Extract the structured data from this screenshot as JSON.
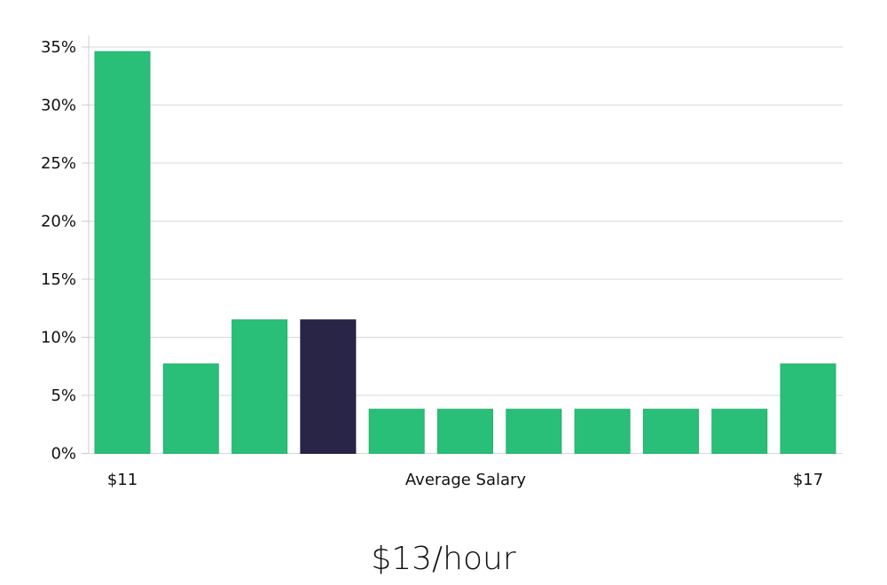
{
  "chart_data": {
    "type": "bar",
    "title": "",
    "xlabel": "Average Salary",
    "ylabel": "",
    "ylim": [
      0,
      35
    ],
    "yticks": [
      "0%",
      "5%",
      "10%",
      "15%",
      "20%",
      "25%",
      "30%",
      "35%"
    ],
    "x_edge_labels": {
      "left": "$11",
      "right": "$17"
    },
    "categories": [
      "bin1",
      "bin2",
      "bin3",
      "bin4",
      "bin5",
      "bin6",
      "bin7",
      "bin8",
      "bin9",
      "bin10",
      "bin11"
    ],
    "values": [
      34.6,
      7.7,
      11.5,
      11.5,
      3.8,
      3.8,
      3.8,
      3.8,
      3.8,
      3.8,
      7.7
    ],
    "highlight_index": 3,
    "grid": true,
    "legend": null
  },
  "colors": {
    "bar": "#2abf78",
    "bar_border": "#22b06c",
    "highlight": "#282546",
    "grid": "#d9d9d9",
    "axis": "#cccccc"
  },
  "summary": {
    "value": "$13/hour"
  }
}
